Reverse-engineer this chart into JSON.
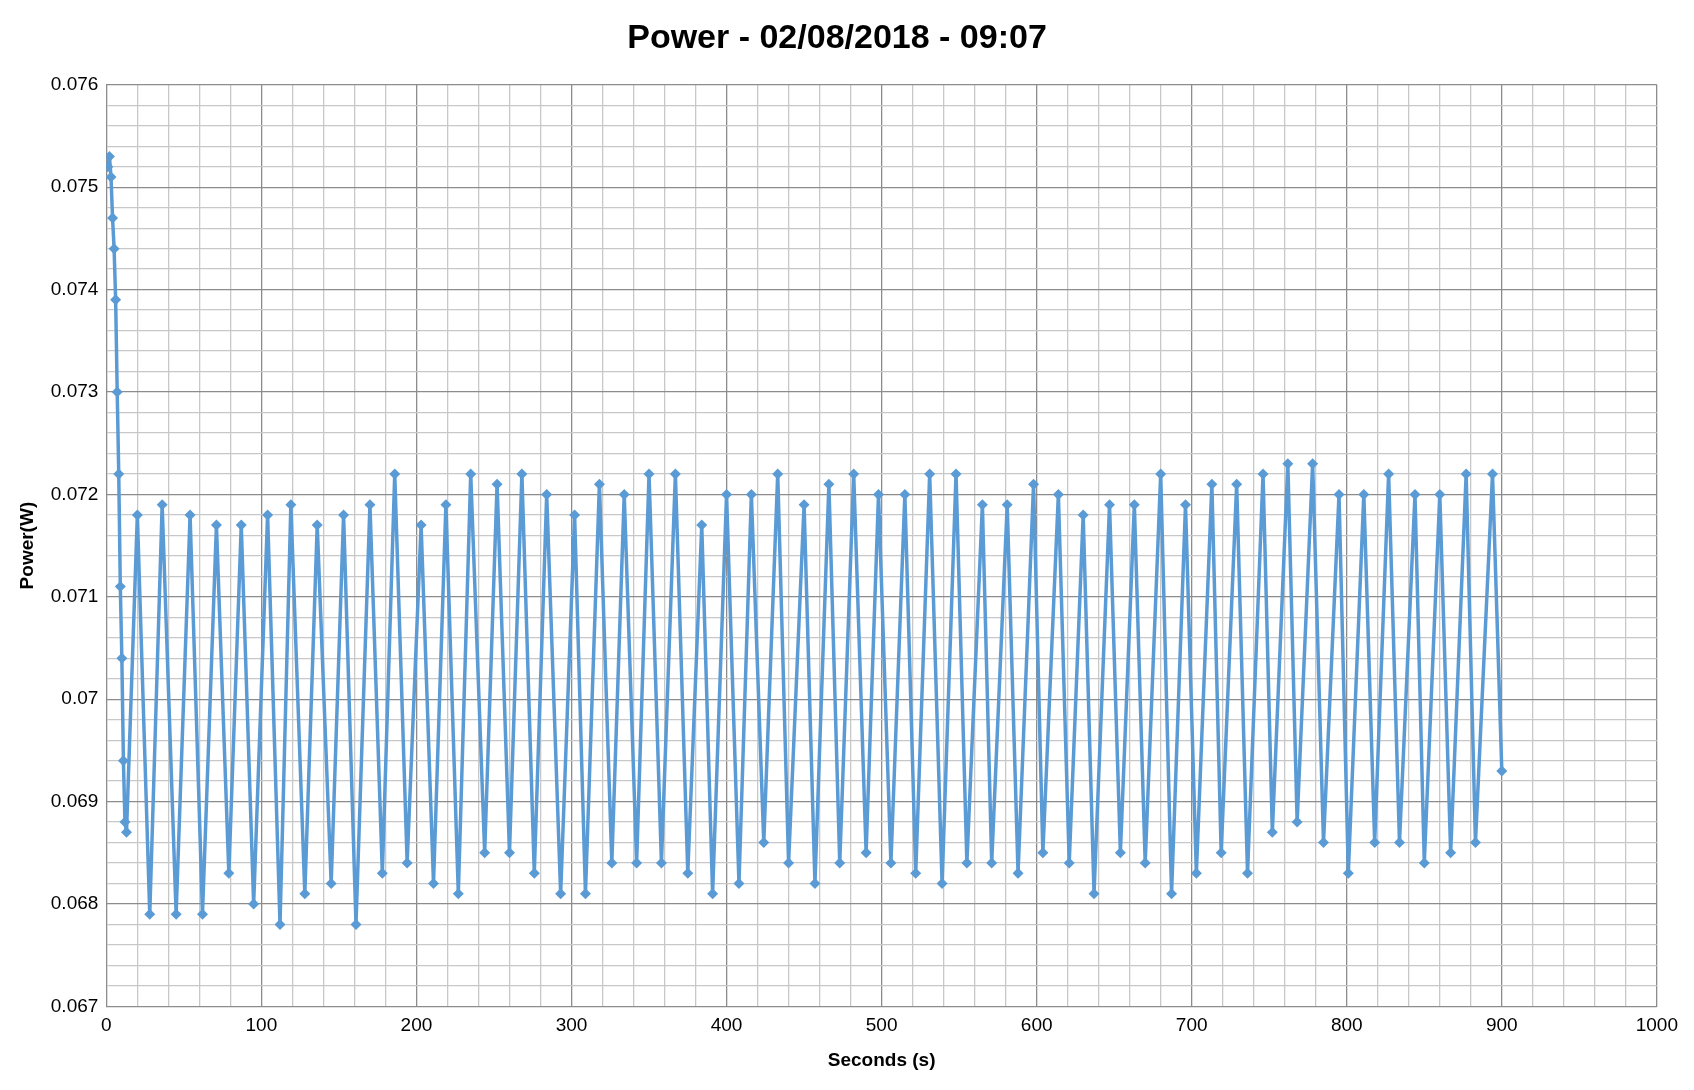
{
  "chart_data": {
    "type": "line",
    "title": "Power - 02/08/2018 - 09:07",
    "xlabel": "Seconds (s)",
    "ylabel": "Power(W)",
    "xlim": [
      0,
      1000
    ],
    "ylim": [
      0.067,
      0.076
    ],
    "xticks": [
      0,
      {
        "value": 20,
        "label": null
      },
      {
        "value": 40,
        "label": null
      },
      {
        "value": 60,
        "label": null
      },
      {
        "value": 80,
        "label": null
      },
      100,
      {
        "value": 120,
        "label": null
      },
      {
        "value": 140,
        "label": null
      },
      {
        "value": 160,
        "label": null
      },
      {
        "value": 180,
        "label": null
      },
      200,
      {
        "value": 220,
        "label": null
      },
      {
        "value": 240,
        "label": null
      },
      {
        "value": 260,
        "label": null
      },
      {
        "value": 280,
        "label": null
      },
      300,
      {
        "value": 320,
        "label": null
      },
      {
        "value": 340,
        "label": null
      },
      {
        "value": 360,
        "label": null
      },
      {
        "value": 380,
        "label": null
      },
      400,
      {
        "value": 420,
        "label": null
      },
      {
        "value": 440,
        "label": null
      },
      {
        "value": 460,
        "label": null
      },
      {
        "value": 480,
        "label": null
      },
      500,
      {
        "value": 520,
        "label": null
      },
      {
        "value": 540,
        "label": null
      },
      {
        "value": 560,
        "label": null
      },
      {
        "value": 580,
        "label": null
      },
      600,
      {
        "value": 620,
        "label": null
      },
      {
        "value": 640,
        "label": null
      },
      {
        "value": 660,
        "label": null
      },
      {
        "value": 680,
        "label": null
      },
      700,
      {
        "value": 720,
        "label": null
      },
      {
        "value": 740,
        "label": null
      },
      {
        "value": 760,
        "label": null
      },
      {
        "value": 780,
        "label": null
      },
      800,
      {
        "value": 820,
        "label": null
      },
      {
        "value": 840,
        "label": null
      },
      {
        "value": 860,
        "label": null
      },
      {
        "value": 880,
        "label": null
      },
      900,
      {
        "value": 920,
        "label": null
      },
      {
        "value": 940,
        "label": null
      },
      {
        "value": 960,
        "label": null
      },
      {
        "value": 980,
        "label": null
      },
      1000
    ],
    "yticks": [
      0.067,
      {
        "value": 0.0672,
        "label": null
      },
      {
        "value": 0.0674,
        "label": null
      },
      {
        "value": 0.0676,
        "label": null
      },
      {
        "value": 0.0678,
        "label": null
      },
      0.068,
      {
        "value": 0.0682,
        "label": null
      },
      {
        "value": 0.0684,
        "label": null
      },
      {
        "value": 0.0686,
        "label": null
      },
      {
        "value": 0.0688,
        "label": null
      },
      0.069,
      {
        "value": 0.0692,
        "label": null
      },
      {
        "value": 0.0694,
        "label": null
      },
      {
        "value": 0.0696,
        "label": null
      },
      {
        "value": 0.0698,
        "label": null
      },
      0.07,
      {
        "value": 0.0702,
        "label": null
      },
      {
        "value": 0.0704,
        "label": null
      },
      {
        "value": 0.0706,
        "label": null
      },
      {
        "value": 0.0708,
        "label": null
      },
      0.071,
      {
        "value": 0.0712,
        "label": null
      },
      {
        "value": 0.0714,
        "label": null
      },
      {
        "value": 0.0716,
        "label": null
      },
      {
        "value": 0.0718,
        "label": null
      },
      0.072,
      {
        "value": 0.0722,
        "label": null
      },
      {
        "value": 0.0724,
        "label": null
      },
      {
        "value": 0.0726,
        "label": null
      },
      {
        "value": 0.0728,
        "label": null
      },
      0.073,
      {
        "value": 0.0732,
        "label": null
      },
      {
        "value": 0.0734,
        "label": null
      },
      {
        "value": 0.0736,
        "label": null
      },
      {
        "value": 0.0738,
        "label": null
      },
      0.074,
      {
        "value": 0.0742,
        "label": null
      },
      {
        "value": 0.0744,
        "label": null
      },
      {
        "value": 0.0746,
        "label": null
      },
      {
        "value": 0.0748,
        "label": null
      },
      0.075,
      {
        "value": 0.0752,
        "label": null
      },
      {
        "value": 0.0754,
        "label": null
      },
      {
        "value": 0.0756,
        "label": null
      },
      {
        "value": 0.0758,
        "label": null
      },
      0.076
    ],
    "grid": true,
    "legend": false,
    "marker": "diamond",
    "line_style": "solid",
    "series": [
      {
        "color": "#5b9bd5",
        "x": [
          1,
          2,
          3,
          4,
          5,
          6,
          7,
          8,
          9,
          10,
          11,
          12,
          13,
          20,
          28,
          36,
          45,
          54,
          62,
          71,
          79,
          87,
          95,
          104,
          112,
          119,
          128,
          136,
          145,
          153,
          161,
          170,
          178,
          186,
          194,
          203,
          211,
          219,
          227,
          235,
          244,
          252,
          260,
          268,
          276,
          284,
          293,
          302,
          309,
          318,
          326,
          334,
          342,
          350,
          358,
          367,
          375,
          384,
          391,
          400,
          408,
          416,
          424,
          433,
          440,
          450,
          457,
          466,
          473,
          482,
          490,
          498,
          506,
          515,
          522,
          531,
          539,
          548,
          555,
          565,
          571,
          581,
          588,
          598,
          604,
          614,
          621,
          630,
          637,
          647,
          654,
          663,
          670,
          680,
          687,
          696,
          703,
          713,
          719,
          729,
          736,
          746,
          752,
          762,
          768,
          778,
          785,
          795,
          801,
          811,
          818,
          827,
          834,
          844,
          850,
          860,
          867,
          877,
          883,
          894,
          900
        ],
        "values": [
          0.0752,
          0.0753,
          0.0751,
          0.0747,
          0.0744,
          0.0739,
          0.073,
          0.0722,
          0.0711,
          0.0704,
          0.0694,
          0.0688,
          0.0687,
          0.0718,
          0.0679,
          0.0719,
          0.0679,
          0.0718,
          0.0679,
          0.0717,
          0.0683,
          0.0717,
          0.068,
          0.0718,
          0.0678,
          0.0719,
          0.0681,
          0.0717,
          0.0682,
          0.0718,
          0.0678,
          0.0719,
          0.0683,
          0.0722,
          0.0684,
          0.0717,
          0.0682,
          0.0719,
          0.0681,
          0.0722,
          0.0685,
          0.0721,
          0.0685,
          0.0722,
          0.0683,
          0.072,
          0.0681,
          0.0718,
          0.0681,
          0.0721,
          0.0684,
          0.072,
          0.0684,
          0.0722,
          0.0684,
          0.0722,
          0.0683,
          0.0717,
          0.0681,
          0.072,
          0.0682,
          0.072,
          0.0686,
          0.0722,
          0.0684,
          0.0719,
          0.0682,
          0.0721,
          0.0684,
          0.0722,
          0.0685,
          0.072,
          0.0684,
          0.072,
          0.0683,
          0.0722,
          0.0682,
          0.0722,
          0.0684,
          0.0719,
          0.0684,
          0.0719,
          0.0683,
          0.0721,
          0.0685,
          0.072,
          0.0684,
          0.0718,
          0.0681,
          0.0719,
          0.0685,
          0.0719,
          0.0684,
          0.0722,
          0.0681,
          0.0719,
          0.0683,
          0.0721,
          0.0685,
          0.0721,
          0.0683,
          0.0722,
          0.0687,
          0.0723,
          0.0688,
          0.0723,
          0.0686,
          0.072,
          0.0683,
          0.072,
          0.0686,
          0.0722,
          0.0686,
          0.072,
          0.0684,
          0.072,
          0.0685,
          0.0722,
          0.0686,
          0.0722,
          0.0693
        ]
      }
    ]
  }
}
